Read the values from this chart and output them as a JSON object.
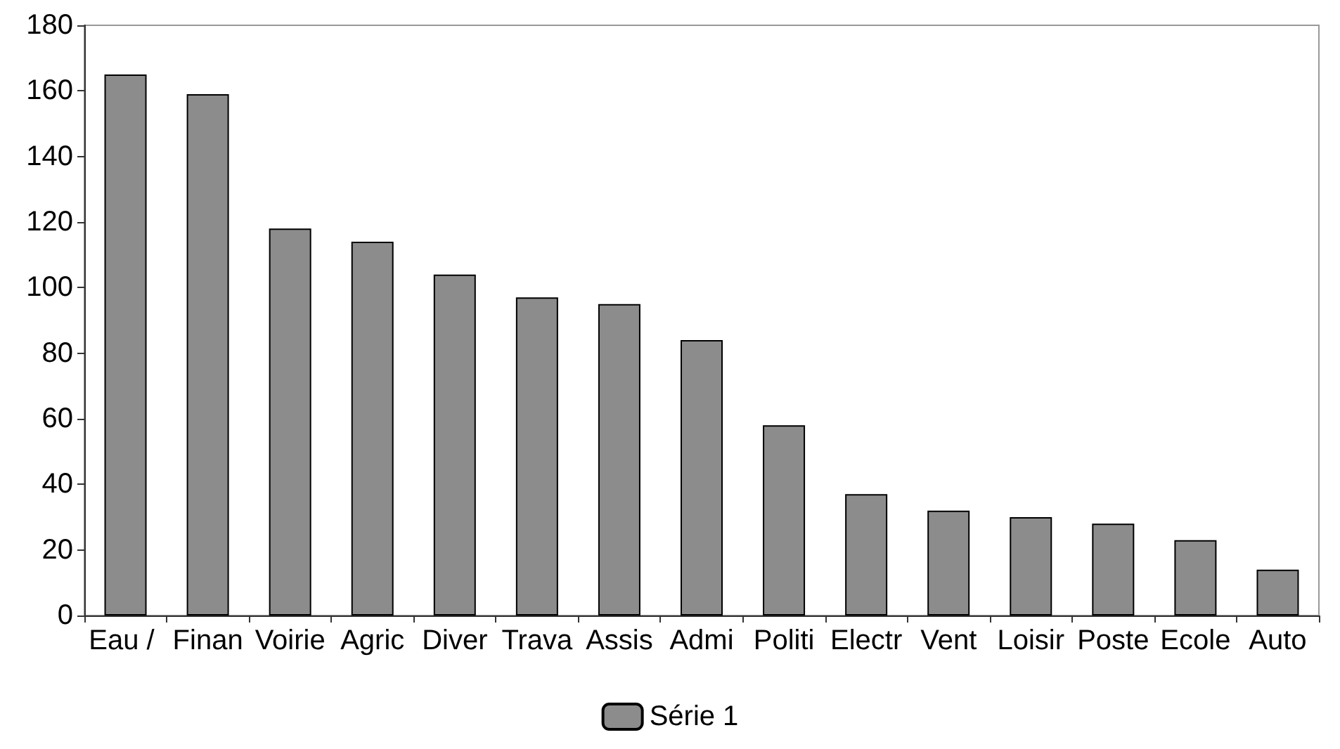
{
  "chart_data": {
    "type": "bar",
    "categories": [
      "Eau / ",
      "Finan",
      "Voirie",
      "Agric",
      "Diver",
      "Trava",
      "Assis",
      "Admi",
      "Politi",
      "Electr",
      "Vent",
      "Loisir",
      "Poste",
      "Ecole",
      "Auto"
    ],
    "series": [
      {
        "name": "Série 1",
        "color": "#8c8c8c",
        "values": [
          165,
          159,
          118,
          114,
          104,
          97,
          95,
          84,
          58,
          37,
          32,
          30,
          28,
          23,
          14
        ]
      }
    ],
    "ylim": [
      0,
      180
    ],
    "yticks": [
      0,
      20,
      40,
      60,
      80,
      100,
      120,
      140,
      160,
      180
    ],
    "grid": false,
    "legend": "bottom"
  }
}
